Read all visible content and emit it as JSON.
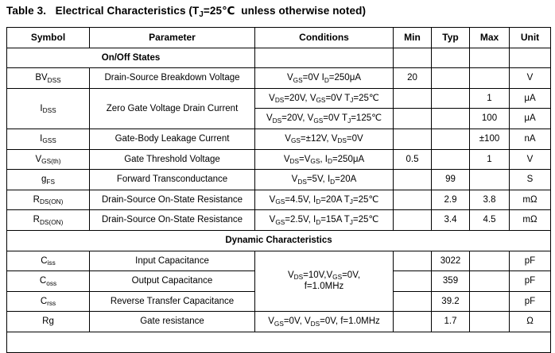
{
  "title": "Table 3.   Electrical Characteristics (T_{J}=25℃  unless otherwise noted)",
  "table": {
    "headers": [
      "Symbol",
      "Parameter",
      "Conditions",
      "Min",
      "Typ",
      "Max",
      "Unit"
    ],
    "sections": [
      {
        "label": "On/Off States"
      },
      {
        "label": "Dynamic Characteristics"
      }
    ],
    "rows": [
      {
        "symbol": "BV_{DSS}",
        "parameter": "Drain-Source Breakdown Voltage",
        "conditions": "V_{GS}=0V I_{D}=250μA",
        "min": "20",
        "typ": "",
        "max": "",
        "unit": "V"
      },
      {
        "symbol": "I_{DSS}",
        "parameter": "Zero Gate Voltage Drain Current",
        "conditions": "V_{DS}=20V, V_{GS}=0V T_{J}=25℃",
        "min": "",
        "typ": "",
        "max": "1",
        "unit": "μA"
      },
      {
        "conditions": "V_{DS}=20V, V_{GS}=0V T_{J}=125℃",
        "min": "",
        "typ": "",
        "max": "100",
        "unit": "μA"
      },
      {
        "symbol": "I_{GSS}",
        "parameter": "Gate-Body Leakage Current",
        "conditions": "V_{GS}=±12V, V_{DS}=0V",
        "min": "",
        "typ": "",
        "max": "±100",
        "unit": "nA"
      },
      {
        "symbol": "V_{GS(th)}",
        "parameter": "Gate Threshold Voltage",
        "conditions": "V_{DS}=V_{GS}, I_{D}=250μA",
        "min": "0.5",
        "typ": "",
        "max": "1",
        "unit": "V"
      },
      {
        "symbol": "g_{FS}",
        "parameter": "Forward Transconductance",
        "conditions": "V_{DS}=5V, I_{D}=20A",
        "min": "",
        "typ": "99",
        "max": "",
        "unit": "S"
      },
      {
        "symbol": "R_{DS(ON)}",
        "parameter": "Drain-Source On-State Resistance",
        "conditions": "V_{GS}=4.5V, I_{D}=20A T_{J}=25℃",
        "min": "",
        "typ": "2.9",
        "max": "3.8",
        "unit": "mΩ"
      },
      {
        "symbol": "R_{DS(ON)}",
        "parameter": "Drain-Source On-State Resistance",
        "conditions": "V_{GS}=2.5V, I_{D}=15A T_{J}=25℃",
        "min": "",
        "typ": "3.4",
        "max": "4.5",
        "unit": "mΩ"
      },
      {
        "symbol": "C_{iss}",
        "parameter": "Input Capacitance",
        "conditions": "V_{DS}=10V,V_{GS}=0V,\nf=1.0MHz",
        "min": "",
        "typ": "3022",
        "max": "",
        "unit": "pF"
      },
      {
        "symbol": "C_{oss}",
        "parameter": "Output Capacitance",
        "min": "",
        "typ": "359",
        "max": "",
        "unit": "pF"
      },
      {
        "symbol": "C_{rss}",
        "parameter": "Reverse Transfer Capacitance",
        "min": "",
        "typ": "39.2",
        "max": "",
        "unit": "pF"
      },
      {
        "symbol": "Rg",
        "parameter": "Gate resistance",
        "conditions": "V_{GS}=0V, V_{DS}=0V, f=1.0MHz",
        "min": "",
        "typ": "1.7",
        "max": "",
        "unit": "Ω"
      }
    ]
  }
}
